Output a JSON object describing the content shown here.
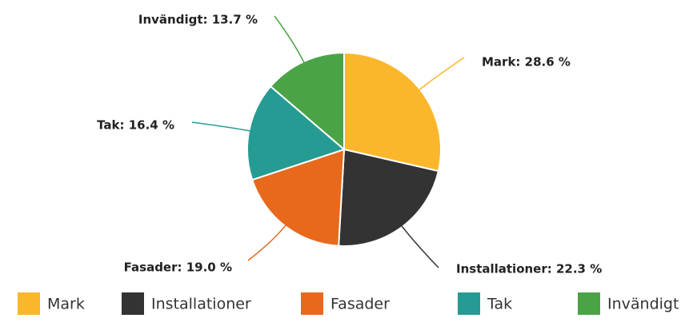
{
  "chart_data": {
    "type": "pie",
    "categories": [
      "Mark",
      "Installationer",
      "Fasader",
      "Tak",
      "Invändigt"
    ],
    "values": [
      28.6,
      22.3,
      19.0,
      16.4,
      13.7
    ],
    "value_labels": [
      "Mark: 28.6 %",
      "Installationer: 22.3 %",
      "Fasader: 19.0 %",
      "Tak: 16.4 %",
      "Invändigt: 13.7 %"
    ],
    "colors": [
      "#fbb72b",
      "#333333",
      "#e8691c",
      "#269b93",
      "#4aa447"
    ],
    "legend": "bottom"
  }
}
